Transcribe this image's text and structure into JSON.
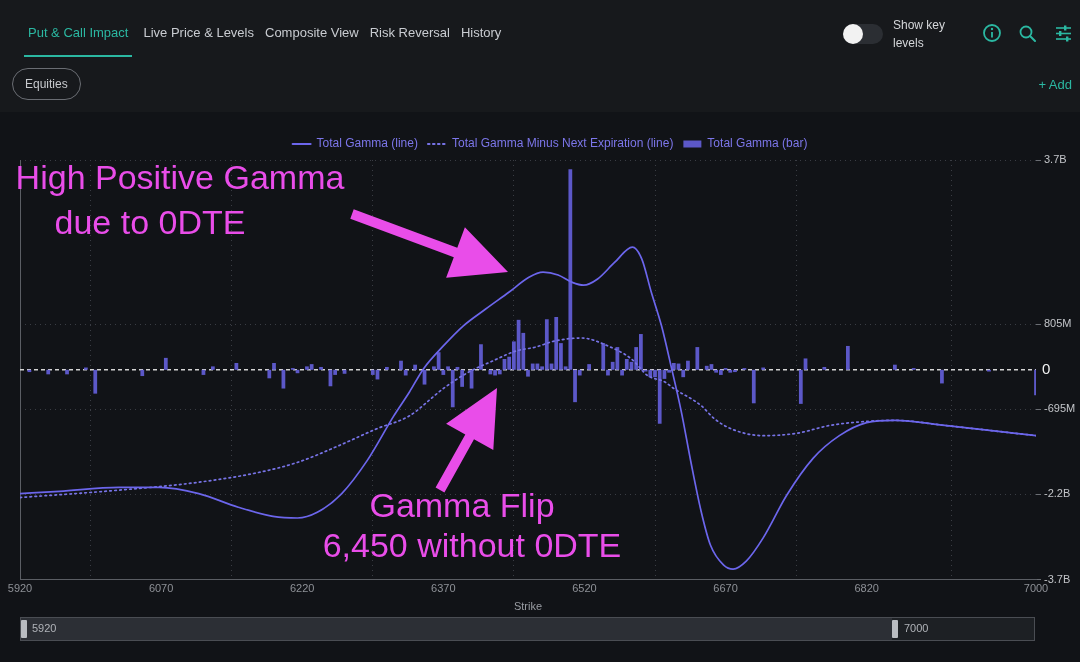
{
  "chart_data": {
    "type": "bar",
    "legend": "top",
    "grid": true,
    "xlabel": "Strike",
    "xlim": [
      5920,
      7000
    ],
    "xticks": [
      5920,
      6070,
      6220,
      6370,
      6520,
      6670,
      6820,
      7000
    ],
    "ylim": [
      -3695000000.0,
      3695000000.0
    ],
    "yticks": [
      {
        "value": -3695000000.0,
        "label": "-3.7B"
      },
      {
        "value": -2195000000.0,
        "label": "-2.2B"
      },
      {
        "value": -695000000.0,
        "label": "-695M"
      },
      {
        "value": 805000000.0,
        "label": "805M"
      },
      {
        "value": 3695000000.0,
        "label": "3.7B"
      }
    ],
    "ref_lines": [
      {
        "axis": "y",
        "value": 0,
        "label": "0",
        "color": "#d4d4d4",
        "line_style": "dashed"
      }
    ],
    "series": [
      {
        "name": "Total Gamma (line)",
        "type": "line",
        "color": "#6c66ec",
        "line_style": "solid",
        "x": [
          5920,
          5962,
          6025,
          6068,
          6110,
          6152,
          6189,
          6215,
          6236,
          6262,
          6289,
          6317,
          6334,
          6349,
          6370,
          6391,
          6415,
          6440,
          6461,
          6476,
          6492,
          6507,
          6519,
          6534,
          6552,
          6571,
          6581,
          6591,
          6602,
          6612,
          6623,
          6633,
          6644,
          6654,
          6668,
          6678,
          6692,
          6710,
          6735,
          6763,
          6791,
          6820,
          6850,
          6903,
          7000
        ],
        "values": [
          -2180000000.0,
          -2140000000.0,
          -2070000000.0,
          -2070000000.0,
          -2180000000.0,
          -2420000000.0,
          -2580000000.0,
          -2610000000.0,
          -2510000000.0,
          -2180000000.0,
          -1600000000.0,
          -820000000.0,
          -390000000.0,
          20000000.0,
          420000000.0,
          770000000.0,
          1070000000.0,
          1370000000.0,
          1630000000.0,
          1720000000.0,
          1670000000.0,
          1540000000.0,
          1490000000.0,
          1600000000.0,
          1890000000.0,
          2160000000.0,
          1950000000.0,
          1370000000.0,
          770000000.0,
          70000000.0,
          -740000000.0,
          -1610000000.0,
          -2490000000.0,
          -3090000000.0,
          -3440000000.0,
          -3510000000.0,
          -3370000000.0,
          -2960000000.0,
          -2210000000.0,
          -1560000000.0,
          -1160000000.0,
          -930000000.0,
          -890000000.0,
          -980000000.0,
          -1160000000.0
        ]
      },
      {
        "name": "Total Gamma Minus Next Expiration (line)",
        "type": "line",
        "color": "#7773e6",
        "line_style": "dotted",
        "x": [
          5920,
          6025,
          6110,
          6173,
          6215,
          6257,
          6299,
          6334,
          6370,
          6397,
          6423,
          6447,
          6468,
          6489,
          6517,
          6545,
          6570,
          6587,
          6605,
          6615,
          6644,
          6658,
          6676,
          6710,
          6745,
          6781,
          6819,
          6850,
          6903,
          7000
        ],
        "values": [
          -2250000000.0,
          -2120000000.0,
          -1980000000.0,
          -1810000000.0,
          -1630000000.0,
          -1350000000.0,
          -1040000000.0,
          -810000000.0,
          -330000000.0,
          -40000000.0,
          160000000.0,
          330000000.0,
          400000000.0,
          510000000.0,
          560000000.0,
          420000000.0,
          190000000.0,
          -100000000.0,
          -210000000.0,
          -330000000.0,
          -630000000.0,
          -860000000.0,
          -1040000000.0,
          -1160000000.0,
          -1120000000.0,
          -980000000.0,
          -910000000.0,
          -890000000.0,
          -980000000.0,
          -1160000000.0
        ]
      },
      {
        "name": "Total Gamma (bar)",
        "color": "#5c58c8",
        "x": [
          5930,
          5950,
          5970,
          5990,
          6000,
          6050,
          6075,
          6115,
          6125,
          6150,
          6185,
          6190,
          6200,
          6210,
          6215,
          6225,
          6230,
          6240,
          6250,
          6255,
          6265,
          6295,
          6300,
          6310,
          6325,
          6330,
          6340,
          6350,
          6360,
          6365,
          6370,
          6375,
          6380,
          6385,
          6390,
          6400,
          6410,
          6420,
          6425,
          6430,
          6435,
          6440,
          6445,
          6450,
          6455,
          6460,
          6465,
          6470,
          6475,
          6480,
          6485,
          6490,
          6495,
          6500,
          6505,
          6510,
          6515,
          6525,
          6540,
          6545,
          6550,
          6555,
          6560,
          6565,
          6570,
          6575,
          6580,
          6585,
          6590,
          6595,
          6600,
          6605,
          6610,
          6615,
          6620,
          6625,
          6630,
          6640,
          6650,
          6655,
          6660,
          6665,
          6670,
          6675,
          6680,
          6690,
          6700,
          6710,
          6750,
          6755,
          6775,
          6800,
          6850,
          6870,
          6900,
          6950,
          7000
        ],
        "values": [
          -40000000.0,
          -80000000.0,
          -80000000.0,
          40000000.0,
          -420000000.0,
          -110000000.0,
          210000000.0,
          -90000000.0,
          60000000.0,
          120000000.0,
          -150000000.0,
          120000000.0,
          -330000000.0,
          30000000.0,
          -60000000.0,
          60000000.0,
          100000000.0,
          50000000.0,
          -290000000.0,
          -90000000.0,
          -70000000.0,
          -90000000.0,
          -170000000.0,
          50000000.0,
          160000000.0,
          -100000000.0,
          90000000.0,
          -260000000.0,
          60000000.0,
          310000000.0,
          -90000000.0,
          60000000.0,
          -660000000.0,
          50000000.0,
          -300000000.0,
          -330000000.0,
          450000000.0,
          -80000000.0,
          -100000000.0,
          -80000000.0,
          190000000.0,
          230000000.0,
          500000000.0,
          880000000.0,
          650000000.0,
          -120000000.0,
          110000000.0,
          110000000.0,
          60000000.0,
          890000000.0,
          110000000.0,
          930000000.0,
          470000000.0,
          60000000.0,
          3530000000.0,
          -570000000.0,
          -100000000.0,
          100000000.0,
          470000000.0,
          -100000000.0,
          140000000.0,
          400000000.0,
          -100000000.0,
          190000000.0,
          140000000.0,
          400000000.0,
          630000000.0,
          -30000000.0,
          -130000000.0,
          -130000000.0,
          -950000000.0,
          -160000000.0,
          -50000000.0,
          120000000.0,
          110000000.0,
          -130000000.0,
          160000000.0,
          400000000.0,
          70000000.0,
          100000000.0,
          -50000000.0,
          -90000000.0,
          30000000.0,
          -50000000.0,
          -40000000.0,
          30000000.0,
          -590000000.0,
          40000000.0,
          -600000000.0,
          200000000.0,
          50000000.0,
          420000000.0,
          90000000.0,
          30000000.0,
          -240000000.0,
          -30000000.0,
          -450000000.0
        ]
      }
    ],
    "annotations": [
      "High Positive Gamma",
      "due to 0DTE",
      "Gamma Flip",
      "6,450 without 0DTE",
      "Put & Call Impact",
      "Live Price & Levels",
      "Composite View",
      "Risk Reversal",
      "History",
      "Show key levels",
      "Equities",
      "+ Add",
      "5920",
      "7000"
    ]
  }
}
